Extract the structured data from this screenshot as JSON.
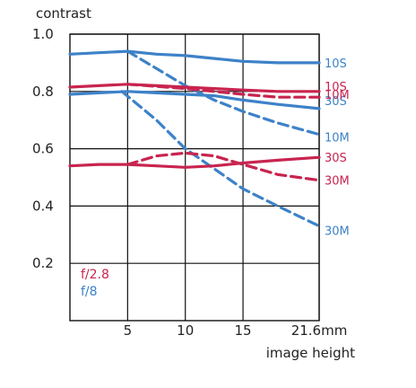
{
  "chart_data": {
    "type": "line",
    "ylabel": "contrast",
    "xlabel": "image height",
    "x_tick_labels": [
      "5",
      "10",
      "15",
      "21.6mm"
    ],
    "x_ticks": [
      5,
      10,
      15,
      21.6
    ],
    "y_tick_labels": [
      "1.0",
      "0.8",
      "0.6",
      "0.4",
      "0.2"
    ],
    "y_ticks": [
      1.0,
      0.8,
      0.6,
      0.4,
      0.2
    ],
    "xlim": [
      0,
      21.6
    ],
    "ylim": [
      0,
      1.0
    ],
    "grid": true,
    "legend": [
      {
        "label": "f/2.8",
        "color": "#c8244f"
      },
      {
        "label": "f/8",
        "color": "#3d82c8"
      }
    ],
    "series": [
      {
        "name": "10S",
        "aperture": "f/8",
        "style": "solid",
        "color": "#3d82c8",
        "x": [
          0,
          2.5,
          5,
          7.5,
          10,
          12.5,
          15,
          18,
          21.6
        ],
        "y": [
          0.93,
          0.935,
          0.94,
          0.93,
          0.925,
          0.915,
          0.905,
          0.9,
          0.9
        ]
      },
      {
        "name": "10M",
        "aperture": "f/8",
        "style": "dashed",
        "color": "#3d82c8",
        "x": [
          5,
          7.5,
          10,
          12.5,
          15,
          18,
          21.6
        ],
        "y": [
          0.94,
          0.88,
          0.82,
          0.77,
          0.73,
          0.69,
          0.65
        ]
      },
      {
        "name": "30S",
        "aperture": "f/8",
        "style": "solid",
        "color": "#3d82c8",
        "x": [
          0,
          2.5,
          5,
          7.5,
          10,
          12.5,
          15,
          18,
          21.6
        ],
        "y": [
          0.79,
          0.795,
          0.8,
          0.795,
          0.79,
          0.785,
          0.77,
          0.755,
          0.74
        ]
      },
      {
        "name": "30M",
        "aperture": "f/8",
        "style": "dashed",
        "color": "#3d82c8",
        "x": [
          4.5,
          7.5,
          10,
          12.5,
          15,
          18,
          21.6
        ],
        "y": [
          0.8,
          0.7,
          0.6,
          0.53,
          0.46,
          0.4,
          0.33
        ]
      },
      {
        "name": "10S",
        "aperture": "f/2.8",
        "style": "solid",
        "color": "#c8244f",
        "x": [
          0,
          2.5,
          5,
          7.5,
          10,
          12.5,
          15,
          18,
          21.6
        ],
        "y": [
          0.815,
          0.82,
          0.825,
          0.82,
          0.815,
          0.81,
          0.805,
          0.8,
          0.8
        ]
      },
      {
        "name": "10M",
        "aperture": "f/2.8",
        "style": "dashed",
        "color": "#c8244f",
        "x": [
          5,
          10,
          15,
          18,
          21.6
        ],
        "y": [
          0.825,
          0.81,
          0.79,
          0.78,
          0.78
        ]
      },
      {
        "name": "30S",
        "aperture": "f/2.8",
        "style": "solid",
        "color": "#c8244f",
        "x": [
          0,
          2.5,
          5,
          7.5,
          10,
          12.5,
          15,
          18,
          21.6
        ],
        "y": [
          0.54,
          0.545,
          0.545,
          0.54,
          0.535,
          0.54,
          0.55,
          0.56,
          0.57
        ]
      },
      {
        "name": "30M",
        "aperture": "f/2.8",
        "style": "dashed",
        "color": "#c8244f",
        "x": [
          5,
          7.5,
          10,
          12.5,
          15,
          18,
          21.6
        ],
        "y": [
          0.545,
          0.575,
          0.585,
          0.575,
          0.545,
          0.51,
          0.49
        ]
      }
    ]
  }
}
